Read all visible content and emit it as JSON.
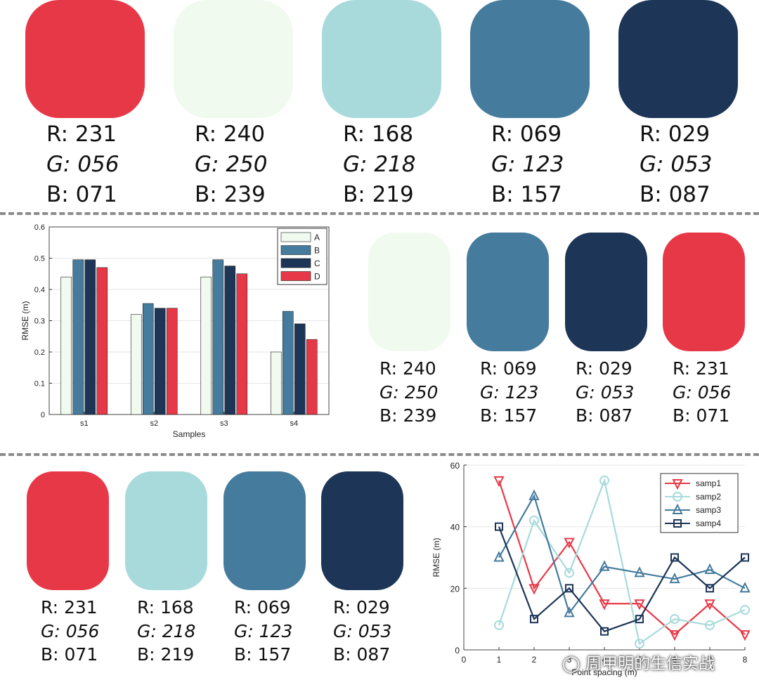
{
  "palette_rows": [
    {
      "swatches": [
        {
          "hex": "#e73847",
          "r": "231",
          "g": "056",
          "b": "071"
        },
        {
          "hex": "#f0faef",
          "r": "240",
          "g": "250",
          "b": "239"
        },
        {
          "hex": "#a8dadb",
          "r": "168",
          "g": "218",
          "b": "219"
        },
        {
          "hex": "#457b9d",
          "r": "069",
          "g": "123",
          "b": "157"
        },
        {
          "hex": "#1d3557",
          "r": "029",
          "g": "053",
          "b": "087"
        }
      ]
    },
    {
      "swatches": [
        {
          "hex": "#f0faef",
          "r": "240",
          "g": "250",
          "b": "239"
        },
        {
          "hex": "#457b9d",
          "r": "069",
          "g": "123",
          "b": "157"
        },
        {
          "hex": "#1d3557",
          "r": "029",
          "g": "053",
          "b": "087"
        },
        {
          "hex": "#e73847",
          "r": "231",
          "g": "056",
          "b": "071"
        }
      ]
    },
    {
      "swatches": [
        {
          "hex": "#e73847",
          "r": "231",
          "g": "056",
          "b": "071"
        },
        {
          "hex": "#a8dadb",
          "r": "168",
          "g": "218",
          "b": "219"
        },
        {
          "hex": "#457b9d",
          "r": "069",
          "g": "123",
          "b": "157"
        },
        {
          "hex": "#1d3557",
          "r": "029",
          "g": "053",
          "b": "087"
        }
      ]
    }
  ],
  "labels": {
    "r": "R:",
    "g": "G:",
    "b": "B:"
  },
  "chart_data": [
    {
      "type": "bar",
      "title": "",
      "xlabel": "Samples",
      "ylabel": "RMSE (m)",
      "ylim": [
        0,
        0.6
      ],
      "yticks": [
        "0",
        "0.1",
        "0.2",
        "0.3",
        "0.4",
        "0.5",
        "0.6"
      ],
      "categories": [
        "s1",
        "s2",
        "s3",
        "s4"
      ],
      "series": [
        {
          "name": "A",
          "color": "#f0faef",
          "values": [
            0.44,
            0.32,
            0.44,
            0.2
          ]
        },
        {
          "name": "B",
          "color": "#457b9d",
          "values": [
            0.495,
            0.355,
            0.495,
            0.33
          ]
        },
        {
          "name": "C",
          "color": "#1d3557",
          "values": [
            0.495,
            0.34,
            0.475,
            0.29
          ]
        },
        {
          "name": "D",
          "color": "#e73847",
          "values": [
            0.47,
            0.34,
            0.45,
            0.24
          ]
        }
      ],
      "legend": "top-right",
      "grid": true
    },
    {
      "type": "line",
      "title": "",
      "xlabel": "Point spacing (m)",
      "ylabel": "RMSE (m)",
      "xlim": [
        0,
        8
      ],
      "ylim": [
        0,
        60
      ],
      "xticks": [
        "0",
        "1",
        "2",
        "3",
        "4",
        "5",
        "6",
        "7",
        "8"
      ],
      "yticks": [
        "0",
        "20",
        "40",
        "60"
      ],
      "x": [
        1,
        2,
        3,
        4,
        5,
        6,
        7,
        8
      ],
      "series": [
        {
          "name": "samp1",
          "color": "#e73847",
          "marker": "triangle-down",
          "values": [
            55,
            20,
            35,
            15,
            15,
            5,
            15,
            5
          ]
        },
        {
          "name": "samp2",
          "color": "#a8dadb",
          "marker": "circle",
          "values": [
            8,
            42,
            25,
            55,
            2,
            10,
            8,
            13
          ]
        },
        {
          "name": "samp3",
          "color": "#457b9d",
          "marker": "triangle-up",
          "values": [
            30,
            50,
            12,
            27,
            25,
            23,
            26,
            20
          ]
        },
        {
          "name": "samp4",
          "color": "#1d3557",
          "marker": "square",
          "values": [
            40,
            10,
            20,
            6,
            10,
            30,
            20,
            30
          ]
        }
      ],
      "legend": "top-right",
      "grid": true
    }
  ],
  "watermark": "周甲明的生信实战"
}
